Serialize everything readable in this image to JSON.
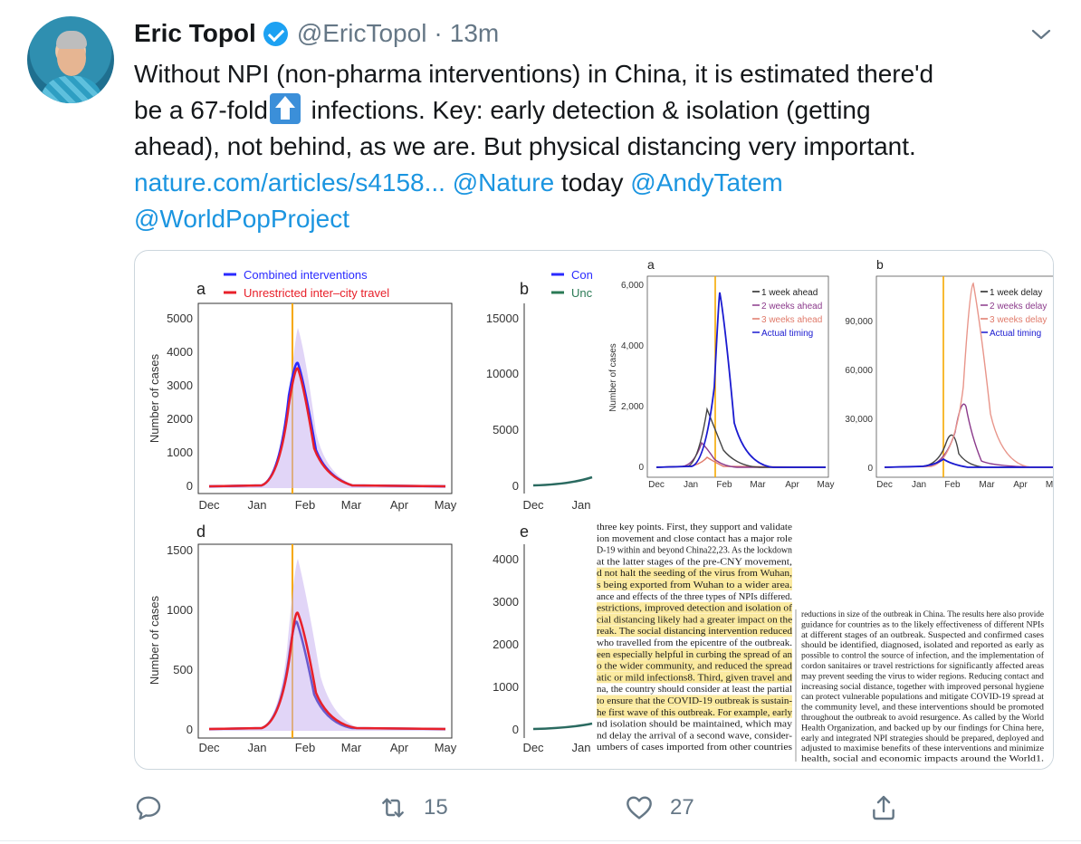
{
  "tweet": {
    "author_name": "Eric Topol",
    "handle": "@EricTopol",
    "separator": "·",
    "time": "13m",
    "text_lines": [
      "Without NPI (non-pharma interventions) in China, it is estimated there'd",
      "infections. Key: early detection & isolation (getting",
      "ahead), not behind, as we are. But physical distancing very important."
    ],
    "text_prefix_line2": "be a 67-fold",
    "link_url": "nature.com/articles/s4158...",
    "mention_nature": "@Nature",
    "word_today": "today",
    "mention_andy": "@AndyTatem",
    "mention_worldpop": "@WorldPopProject"
  },
  "actions": {
    "reply_count": "",
    "retweet_count": "15",
    "like_count": "27",
    "share_count": ""
  },
  "colors": {
    "link": "#1b95e0",
    "secondary_text": "#657786",
    "border": "#ccd6dd",
    "verified": "#1da1f2"
  },
  "figure_left": {
    "panel_a": {
      "label": "a",
      "legend": [
        "Combined interventions",
        "Unrestricted inter–city travel"
      ],
      "y_ticks": [
        "5000",
        "4000",
        "3000",
        "2000",
        "1000",
        "0"
      ],
      "x_ticks": [
        "Dec",
        "Jan",
        "Feb",
        "Mar",
        "Apr",
        "May"
      ],
      "ylabel": "Number of cases"
    },
    "panel_b": {
      "label": "b",
      "legend": [
        "Con",
        "Unc"
      ],
      "y_ticks": [
        "15000",
        "10000",
        "5000",
        "0"
      ],
      "x_ticks": [
        "Dec",
        "Jan"
      ]
    },
    "panel_d": {
      "label": "d",
      "y_ticks": [
        "1500",
        "1000",
        "500",
        "0"
      ],
      "x_ticks": [
        "Dec",
        "Jan",
        "Feb",
        "Mar",
        "Apr",
        "May"
      ],
      "ylabel": "Number of cases"
    },
    "panel_e": {
      "label": "e",
      "y_ticks": [
        "4000",
        "3000",
        "2000",
        "1000",
        "0"
      ],
      "x_ticks": [
        "Dec",
        "Jan"
      ]
    }
  },
  "figure_right": {
    "panel_a": {
      "label": "a",
      "legend": [
        "1 week ahead",
        "2 weeks ahead",
        "3 weeks ahead",
        "Actual timing"
      ],
      "y_ticks": [
        "6,000",
        "4,000",
        "2,000",
        "0"
      ],
      "x_ticks": [
        "Dec",
        "Jan",
        "Feb",
        "Mar",
        "Apr",
        "May"
      ],
      "ylabel": "Number of cases"
    },
    "panel_b": {
      "label": "b",
      "legend": [
        "1 week delay",
        "2 weeks delay",
        "3 weeks delay",
        "Actual timing"
      ],
      "y_ticks": [
        "90,000",
        "60,000",
        "30,000",
        "0"
      ],
      "x_ticks": [
        "Dec",
        "Jan",
        "Feb",
        "Mar",
        "Apr",
        "M"
      ]
    }
  },
  "paper_excerpt": {
    "left_column": [
      "three key points. First, they support and validate",
      "ion movement and close contact has a major role",
      "D-19 within and beyond China22,23. As the lockdown",
      "at the latter stages of the pre-CNY movement,",
      "d not halt the seeding of the virus from Wuhan,",
      "s being exported from Wuhan to a wider area.",
      "ance and effects of the three types of NPIs differed.",
      "estrictions, improved detection and isolation of",
      "cial distancing likely had a greater impact on the",
      "reak. The social distancing intervention reduced",
      "who travelled from the epicentre of the outbreak.",
      "een especially helpful in curbing the spread of an",
      "o the wider community, and reduced the spread",
      "atic or mild infections8. Third, given travel and",
      "na, the country should consider at least the partial",
      "to ensure that the COVID-19 outbreak is sustain-",
      "he first wave of this outbreak. For example, early",
      "nd isolation should be maintained, which may",
      "nd delay the arrival of a second wave, consider-",
      "umbers of cases imported from other countries"
    ],
    "right_column": [
      "reductions in size of the outbreak in China. The results here also provide",
      "guidance for countries as to the likely effectiveness of different NPIs",
      "at different stages of an outbreak. Suspected and confirmed cases",
      "should be identified, diagnosed, isolated and reported as early as",
      "possible to control the source of infection, and the implementation of",
      "cordon sanitaires or travel restrictions for significantly affected areas",
      "may prevent seeding the virus to wider regions. Reducing contact and",
      "increasing social distance, together with improved personal hygiene",
      "can protect vulnerable populations and mitigate COVID-19 spread at",
      "the community level, and these interventions should be promoted",
      "throughout the outbreak to avoid resurgence. As called by the World",
      "Health Organization, and backed up by our findings for China here,",
      "early and integrated NPI strategies should be prepared, deployed and",
      "adjusted to maximise benefits of these interventions and minimize",
      "health, social and economic impacts around the World1."
    ],
    "highlighted_lines": [
      4,
      5,
      7,
      8,
      9,
      11,
      12,
      13,
      15,
      16
    ]
  }
}
